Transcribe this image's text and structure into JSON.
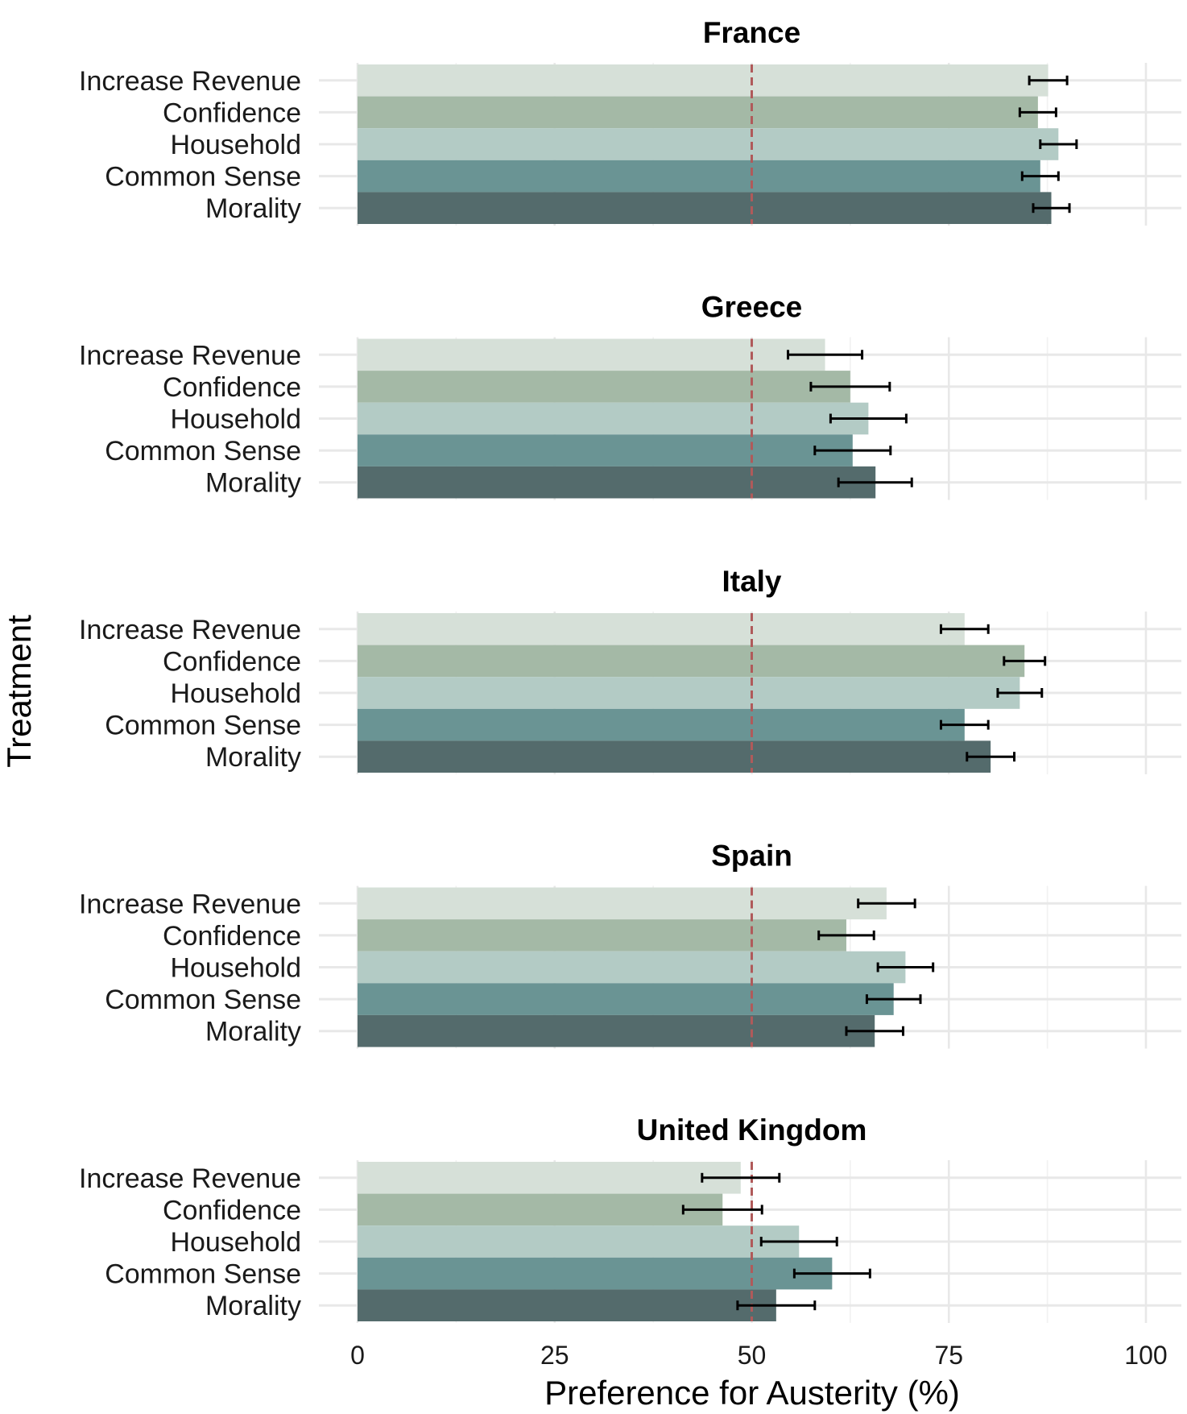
{
  "chart_data": {
    "type": "bar",
    "orientation": "horizontal",
    "xlabel": "Preference for Austerity (%)",
    "ylabel": "Treatment",
    "xlim": [
      0,
      100
    ],
    "xticks": [
      "0",
      "25",
      "50",
      "75",
      "100"
    ],
    "reference_line": 50,
    "categories": [
      "Increase Revenue",
      "Confidence",
      "Household",
      "Common Sense",
      "Morality"
    ],
    "colors": [
      "#d6e0d8",
      "#a4b9a6",
      "#b3cbc5",
      "#6a9494",
      "#546b6c"
    ],
    "reference_color": "#b05a5a",
    "panels": [
      {
        "title": "France",
        "values": [
          87.6,
          86.3,
          88.9,
          86.6,
          88.0
        ],
        "ci_low": [
          85.2,
          84.0,
          86.6,
          84.3,
          85.7
        ],
        "ci_high": [
          90.0,
          88.6,
          91.2,
          88.9,
          90.3
        ]
      },
      {
        "title": "Greece",
        "values": [
          59.3,
          62.5,
          64.8,
          62.8,
          65.7
        ],
        "ci_low": [
          54.6,
          57.5,
          60.0,
          58.0,
          61.0
        ],
        "ci_high": [
          64.0,
          67.5,
          69.6,
          67.6,
          70.3
        ]
      },
      {
        "title": "Italy",
        "values": [
          77.0,
          84.6,
          84.0,
          77.0,
          80.3
        ],
        "ci_low": [
          74.0,
          82.0,
          81.2,
          74.0,
          77.3
        ],
        "ci_high": [
          80.0,
          87.2,
          86.8,
          80.0,
          83.3
        ]
      },
      {
        "title": "Spain",
        "values": [
          67.1,
          62.0,
          69.5,
          68.0,
          65.6
        ],
        "ci_low": [
          63.5,
          58.5,
          66.0,
          64.6,
          62.0
        ],
        "ci_high": [
          70.7,
          65.5,
          73.0,
          71.4,
          69.2
        ]
      },
      {
        "title": "United Kingdom",
        "values": [
          48.6,
          46.3,
          56.0,
          60.2,
          53.1
        ],
        "ci_low": [
          43.7,
          41.3,
          51.2,
          55.4,
          48.2
        ],
        "ci_high": [
          53.5,
          51.3,
          60.8,
          65.0,
          58.0
        ]
      }
    ]
  }
}
